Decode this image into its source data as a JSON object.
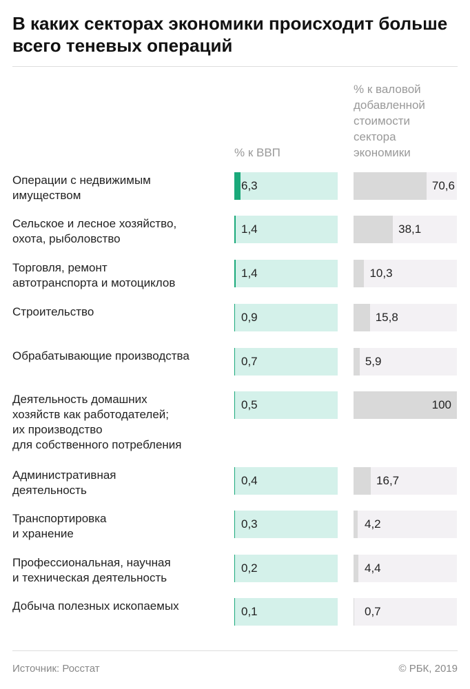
{
  "chart_data": {
    "type": "bar",
    "title": "В каких секторах экономики происходит больше всего теневых операций",
    "categories": [
      "Операции с недвижимым\nимуществом",
      "Сельское и лесное хозяйство,\nохота, рыболовство",
      "Торговля, ремонт\nавтотранспорта и мотоциклов",
      "Строительство",
      "Обрабатывающие производства",
      "Деятельность домашних\nхозяйств как работодателей;\nих производство\nдля собственного потребления",
      "Административная\nдеятельность",
      "Транспортировка\nи хранение",
      "Профессиональная, научная\nи техническая деятельность",
      "Добыча полезных ископаемых"
    ],
    "xlim": [
      0,
      100
    ],
    "series": [
      {
        "name": "% к ВВП",
        "color": "#1aa97a",
        "background": "#d4f1ea",
        "values": [
          6.3,
          1.4,
          1.4,
          0.9,
          0.7,
          0.5,
          0.4,
          0.3,
          0.2,
          0.1
        ],
        "value_labels": [
          "6,3",
          "1,4",
          "1,4",
          "0,9",
          "0,7",
          "0,5",
          "0,4",
          "0,3",
          "0,2",
          "0,1"
        ]
      },
      {
        "name": "% к валовой добавленной стоимости сектора экономики",
        "color": "#d9d9d9",
        "background": "#f3f1f4",
        "values": [
          70.6,
          38.1,
          10.3,
          15.8,
          5.9,
          100,
          16.7,
          4.2,
          4.4,
          0.7
        ],
        "value_labels": [
          "70,6",
          "38,1",
          "10,3",
          "15,8",
          "5,9",
          "100",
          "16,7",
          "4,2",
          "4,4",
          "0,7"
        ]
      }
    ],
    "source": "Источник: Росстат",
    "copyright": "© РБК, 2019"
  }
}
